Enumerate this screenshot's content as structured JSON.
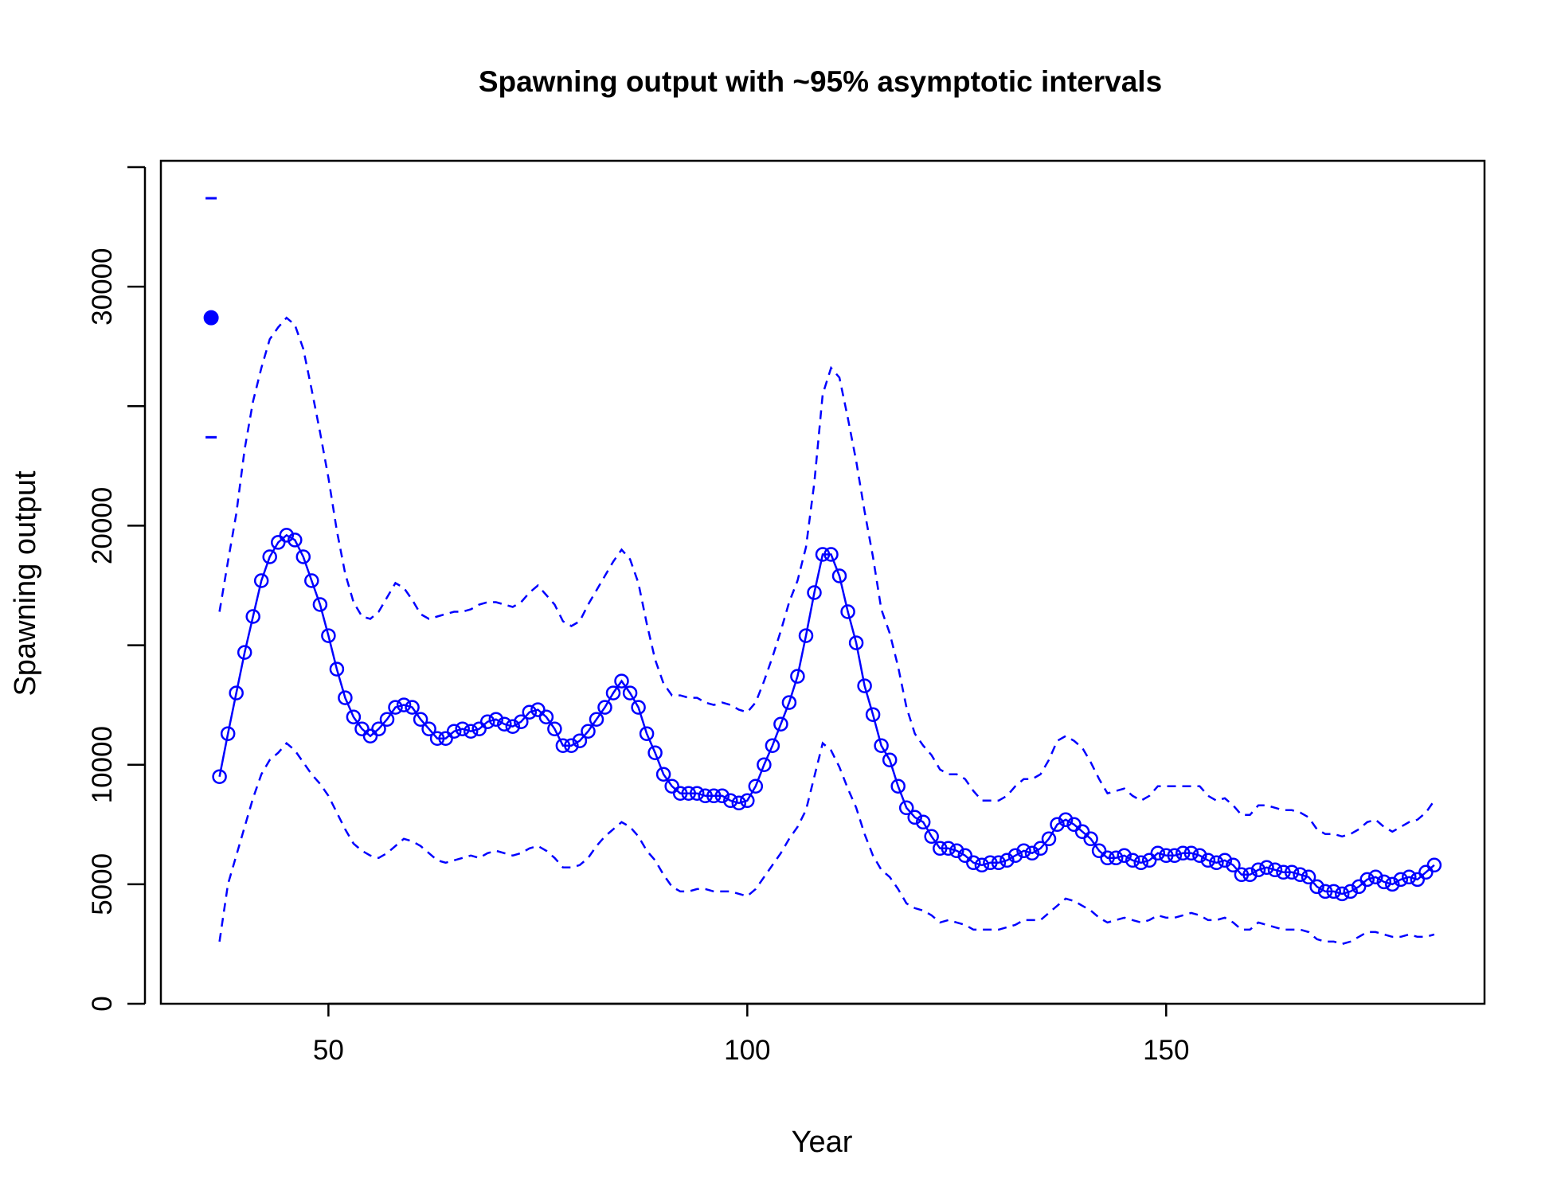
{
  "chart_data": {
    "type": "line",
    "title": "Spawning output with ~95% asymptotic intervals",
    "xlabel": "Year",
    "ylabel": "Spawning output",
    "xlim": [
      30,
      188
    ],
    "ylim": [
      0,
      35000
    ],
    "x_ticks": [
      50,
      100,
      150
    ],
    "x_tick_labels": [
      "50",
      "100",
      "150"
    ],
    "y_ticks": [
      0,
      5000,
      10000,
      15000,
      20000,
      25000,
      30000,
      35000
    ],
    "y_tick_labels": [
      "0",
      "5000",
      "10000",
      "",
      "20000",
      "",
      "30000",
      ""
    ],
    "colors": {
      "series": "#0000ff",
      "axis": "#000000"
    },
    "virgin": {
      "x": 36,
      "value": 28700,
      "lower": 23700,
      "upper": 33700
    },
    "start_year": 37,
    "series": [
      {
        "role": "estimate",
        "values": [
          9500,
          11300,
          13000,
          14700,
          16200,
          17700,
          18700,
          19300,
          19600,
          19400,
          18700,
          17700,
          16700,
          15400,
          14000,
          12800,
          12000,
          11500,
          11200,
          11500,
          11900,
          12400,
          12500,
          12400,
          11900,
          11500,
          11100,
          11100,
          11400,
          11500,
          11400,
          11500,
          11800,
          11900,
          11700,
          11600,
          11800,
          12200,
          12300,
          12000,
          11500,
          10800,
          10800,
          11000,
          11400,
          11900,
          12400,
          13000,
          13500,
          13000,
          12400,
          11300,
          10500,
          9600,
          9100,
          8800,
          8800,
          8800,
          8700,
          8700,
          8700,
          8500,
          8400,
          8500,
          9100,
          10000,
          10800,
          11700,
          12600,
          13700,
          15400,
          17200,
          18800,
          18800,
          17900,
          16400,
          15100,
          13300,
          12100,
          10800,
          10200,
          9100,
          8200,
          7800,
          7600,
          7000,
          6500,
          6500,
          6400,
          6200,
          5900,
          5800,
          5900,
          5900,
          6000,
          6200,
          6400,
          6300,
          6500,
          6900,
          7500,
          7700,
          7500,
          7200,
          6900,
          6400,
          6100,
          6100,
          6200,
          6000,
          5900,
          6000,
          6300,
          6200,
          6200,
          6300,
          6300,
          6200,
          6000,
          5900,
          6000,
          5800,
          5400,
          5400,
          5600,
          5700,
          5600,
          5500,
          5500,
          5400,
          5300,
          4900,
          4700,
          4700,
          4600,
          4700,
          4900,
          5200,
          5300,
          5100,
          5000,
          5200,
          5300,
          5200,
          5500,
          5800
        ]
      },
      {
        "role": "lower",
        "values": [
          2600,
          5000,
          6200,
          7400,
          8600,
          9600,
          10200,
          10500,
          10900,
          10600,
          10100,
          9600,
          9200,
          8700,
          8000,
          7300,
          6700,
          6400,
          6200,
          6100,
          6300,
          6600,
          6900,
          6800,
          6600,
          6300,
          6000,
          5900,
          6000,
          6100,
          6200,
          6100,
          6300,
          6400,
          6300,
          6200,
          6300,
          6500,
          6600,
          6400,
          6100,
          5700,
          5700,
          5800,
          6100,
          6600,
          7000,
          7300,
          7600,
          7400,
          7000,
          6400,
          6000,
          5400,
          4900,
          4700,
          4700,
          4800,
          4800,
          4700,
          4700,
          4700,
          4600,
          4500,
          4800,
          5300,
          5800,
          6300,
          6900,
          7400,
          8100,
          9500,
          10900,
          10600,
          9900,
          9000,
          8200,
          7100,
          6200,
          5600,
          5300,
          4800,
          4200,
          4000,
          3900,
          3700,
          3400,
          3500,
          3400,
          3300,
          3100,
          3100,
          3100,
          3100,
          3200,
          3300,
          3500,
          3500,
          3500,
          3800,
          4100,
          4400,
          4300,
          4100,
          3900,
          3600,
          3400,
          3500,
          3600,
          3500,
          3400,
          3500,
          3700,
          3600,
          3600,
          3700,
          3800,
          3700,
          3500,
          3500,
          3600,
          3400,
          3100,
          3100,
          3400,
          3300,
          3200,
          3100,
          3100,
          3100,
          3000,
          2700,
          2600,
          2600,
          2500,
          2600,
          2800,
          3000,
          3000,
          2900,
          2800,
          2800,
          2900,
          2800,
          2800,
          2900
        ]
      },
      {
        "role": "upper",
        "values": [
          16400,
          18500,
          20500,
          23200,
          25200,
          26600,
          27800,
          28300,
          28700,
          28400,
          27400,
          25700,
          23900,
          22000,
          19800,
          18000,
          16800,
          16200,
          16100,
          16400,
          17000,
          17600,
          17400,
          16900,
          16300,
          16100,
          16200,
          16300,
          16400,
          16400,
          16500,
          16700,
          16800,
          16800,
          16700,
          16600,
          16800,
          17200,
          17500,
          17100,
          16700,
          16000,
          15800,
          16000,
          16700,
          17300,
          17900,
          18500,
          19000,
          18600,
          17600,
          15900,
          14400,
          13400,
          12900,
          12900,
          12800,
          12800,
          12600,
          12500,
          12600,
          12500,
          12300,
          12200,
          12600,
          13500,
          14500,
          15600,
          16800,
          17700,
          19100,
          21800,
          25500,
          26600,
          26200,
          24500,
          22700,
          20600,
          18700,
          16500,
          15500,
          14100,
          12400,
          11300,
          10800,
          10400,
          9800,
          9600,
          9600,
          9400,
          8900,
          8500,
          8500,
          8500,
          8700,
          9100,
          9400,
          9400,
          9600,
          10200,
          11000,
          11200,
          11000,
          10700,
          10100,
          9400,
          8800,
          8900,
          9000,
          8700,
          8500,
          8700,
          9100,
          9100,
          9100,
          9100,
          9100,
          9100,
          8700,
          8500,
          8600,
          8300,
          7900,
          7900,
          8300,
          8300,
          8200,
          8100,
          8100,
          8000,
          7800,
          7300,
          7100,
          7100,
          7000,
          7100,
          7300,
          7600,
          7700,
          7400,
          7200,
          7400,
          7600,
          7700,
          8000,
          8500
        ]
      }
    ]
  }
}
